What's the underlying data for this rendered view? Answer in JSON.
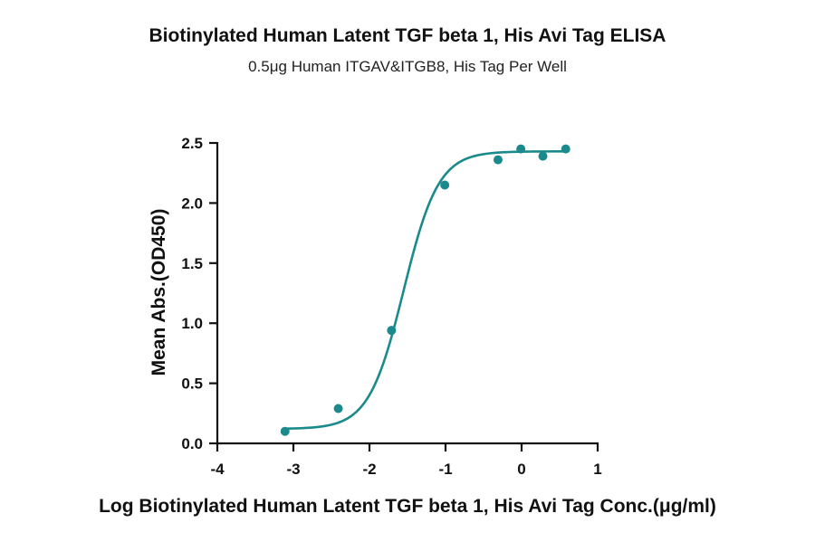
{
  "chart_data": {
    "type": "scatter",
    "title": "Biotinylated Human Latent TGF beta 1, His Avi Tag ELISA",
    "subtitle": "0.5μg Human ITGAV&ITGB8, His Tag Per Well",
    "xlabel": "Log Biotinylated Human Latent TGF beta 1, His Avi Tag Conc.(μg/ml)",
    "ylabel": "Mean Abs.(OD450)",
    "xlim": [
      -4,
      1
    ],
    "ylim": [
      0,
      2.5
    ],
    "x_ticks": [
      "-4",
      "-3",
      "-2",
      "-1",
      "0",
      "1"
    ],
    "y_ticks": [
      "0.0",
      "0.5",
      "1.0",
      "1.5",
      "2.0",
      "2.5"
    ],
    "grid": false,
    "color": "#1b8a8c",
    "series": [
      {
        "points": [
          {
            "x": -3.11,
            "y": 0.1
          },
          {
            "x": -2.41,
            "y": 0.29
          },
          {
            "x": -1.71,
            "y": 0.94
          },
          {
            "x": -1.01,
            "y": 2.15
          },
          {
            "x": -0.31,
            "y": 2.36
          },
          {
            "x": -0.01,
            "y": 2.45
          },
          {
            "x": 0.28,
            "y": 2.39
          },
          {
            "x": 0.58,
            "y": 2.45
          }
        ],
        "fit": {
          "model": "4PL",
          "bottom": 0.12,
          "top": 2.43,
          "log_ec50": -1.55,
          "hill_slope": 1.9,
          "x_range": [
            -3.11,
            0.58
          ]
        }
      }
    ]
  }
}
